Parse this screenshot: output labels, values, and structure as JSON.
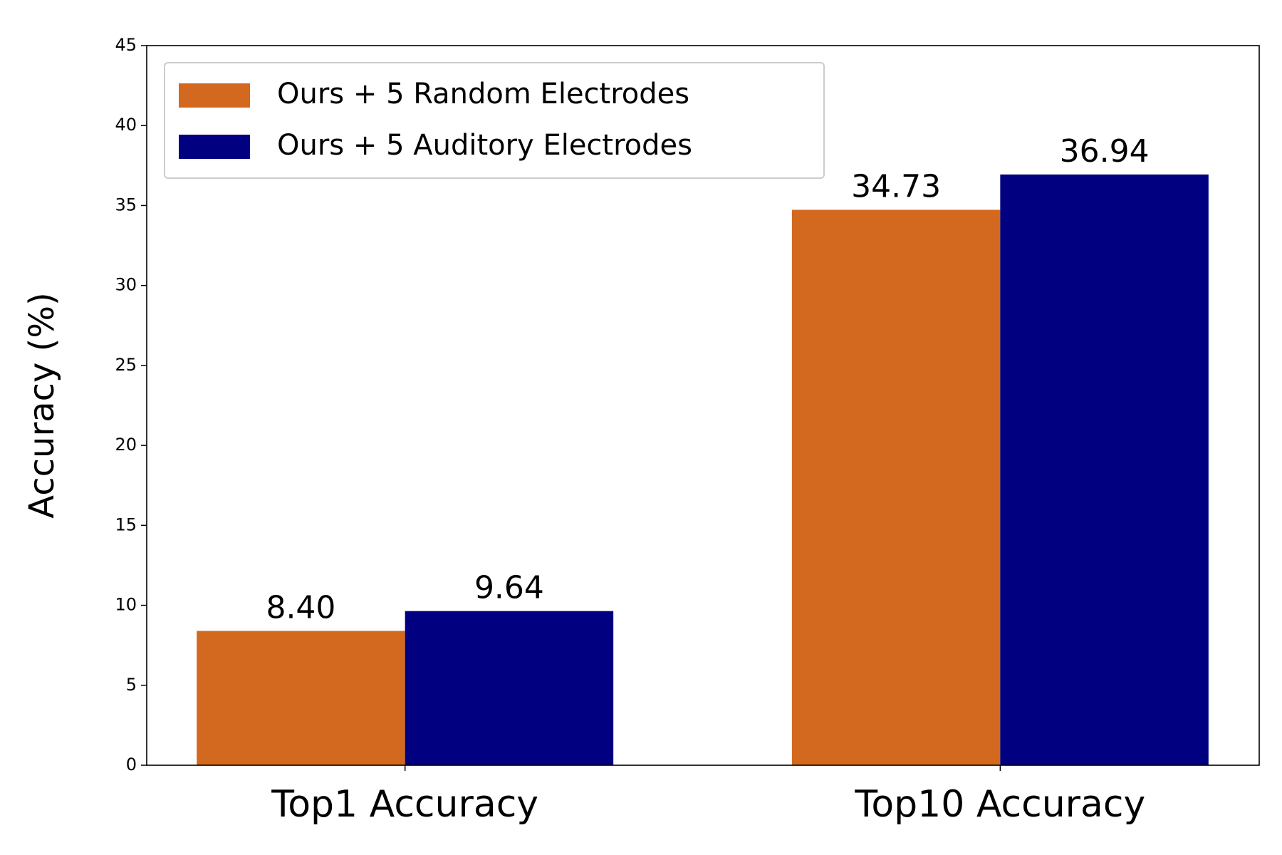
{
  "chart_data": {
    "type": "bar",
    "y_label": "Accuracy (%)",
    "categories": [
      "Top1 Accuracy",
      "Top10 Accuracy"
    ],
    "series": [
      {
        "name": "Ours + 5 Random Electrodes",
        "color": "#d2691e",
        "values": [
          8.4,
          34.73
        ],
        "value_labels": [
          "8.40",
          "34.73"
        ]
      },
      {
        "name": "Ours + 5 Auditory Electrodes",
        "color": "#000080",
        "values": [
          9.64,
          36.94
        ],
        "value_labels": [
          "9.64",
          "36.94"
        ]
      }
    ],
    "ylim": [
      0,
      45
    ],
    "yticks": [
      0,
      5,
      10,
      15,
      20,
      25,
      30,
      35,
      40,
      45
    ],
    "grid": false,
    "legend": "upper left"
  }
}
